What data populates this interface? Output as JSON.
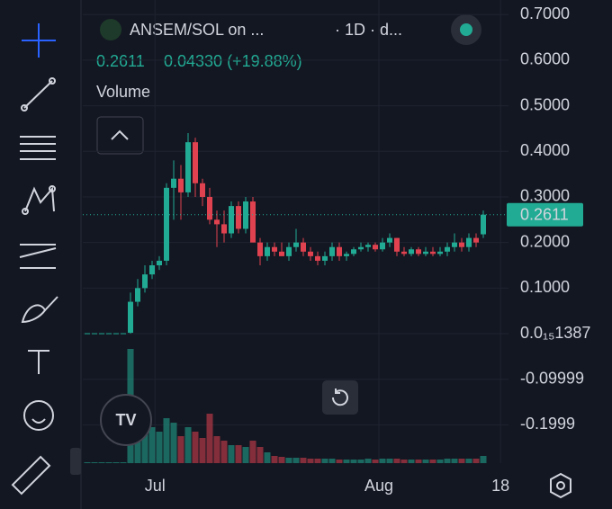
{
  "header": {
    "pair": "ANSEM/SOL on ...",
    "interval": "· 1D · d...",
    "change": "0.04330 (+19.88%)",
    "volume_label": "Volume"
  },
  "chart_data": {
    "type": "candlestick",
    "up_color": "#22ab94",
    "down_color": "#e0424f",
    "open": [
      0.001,
      0.001,
      0.001,
      0.001,
      0.001,
      0.001,
      0.002,
      0.07,
      0.1,
      0.13,
      0.15,
      0.16,
      0.32,
      0.34,
      0.31,
      0.42,
      0.33,
      0.3,
      0.25,
      0.24,
      0.22,
      0.28,
      0.23,
      0.29,
      0.2,
      0.17,
      0.19,
      0.18,
      0.17,
      0.19,
      0.2,
      0.18,
      0.17,
      0.16,
      0.17,
      0.19,
      0.17,
      0.175,
      0.185,
      0.19,
      0.195,
      0.185,
      0.2,
      0.21,
      0.18,
      0.175,
      0.185,
      0.175,
      0.18,
      0.175,
      0.18,
      0.19,
      0.2,
      0.19,
      0.21,
      0.218
    ],
    "high": [
      0.001,
      0.001,
      0.001,
      0.001,
      0.001,
      0.001,
      0.09,
      0.12,
      0.15,
      0.16,
      0.17,
      0.33,
      0.38,
      0.37,
      0.44,
      0.43,
      0.34,
      0.32,
      0.27,
      0.27,
      0.29,
      0.29,
      0.3,
      0.3,
      0.21,
      0.2,
      0.2,
      0.2,
      0.2,
      0.23,
      0.21,
      0.19,
      0.18,
      0.18,
      0.2,
      0.2,
      0.18,
      0.19,
      0.2,
      0.2,
      0.2,
      0.21,
      0.22,
      0.21,
      0.19,
      0.19,
      0.19,
      0.19,
      0.19,
      0.19,
      0.2,
      0.22,
      0.21,
      0.22,
      0.22,
      0.27
    ],
    "low": [
      0.001,
      0.001,
      0.001,
      0.001,
      0.001,
      0.001,
      0.0,
      0.06,
      0.09,
      0.12,
      0.14,
      0.15,
      0.25,
      0.25,
      0.3,
      0.3,
      0.28,
      0.24,
      0.19,
      0.2,
      0.21,
      0.22,
      0.22,
      0.2,
      0.15,
      0.16,
      0.17,
      0.17,
      0.16,
      0.18,
      0.17,
      0.16,
      0.15,
      0.15,
      0.16,
      0.16,
      0.16,
      0.17,
      0.18,
      0.18,
      0.18,
      0.18,
      0.19,
      0.17,
      0.17,
      0.17,
      0.17,
      0.17,
      0.17,
      0.17,
      0.17,
      0.18,
      0.18,
      0.18,
      0.19,
      0.21
    ],
    "close": [
      0.001,
      0.001,
      0.001,
      0.001,
      0.001,
      0.001,
      0.07,
      0.1,
      0.13,
      0.15,
      0.16,
      0.32,
      0.34,
      0.31,
      0.42,
      0.33,
      0.3,
      0.25,
      0.24,
      0.22,
      0.28,
      0.23,
      0.29,
      0.2,
      0.17,
      0.19,
      0.18,
      0.17,
      0.19,
      0.2,
      0.18,
      0.17,
      0.16,
      0.17,
      0.19,
      0.17,
      0.175,
      0.185,
      0.19,
      0.195,
      0.185,
      0.2,
      0.21,
      0.18,
      0.175,
      0.185,
      0.175,
      0.18,
      0.175,
      0.18,
      0.19,
      0.2,
      0.19,
      0.21,
      0.2,
      0.2611
    ],
    "volume": [
      1,
      1,
      1,
      1,
      1,
      1,
      127,
      60,
      45,
      40,
      35,
      50,
      45,
      30,
      40,
      35,
      28,
      55,
      30,
      25,
      20,
      20,
      18,
      25,
      18,
      12,
      8,
      7,
      6,
      6,
      6,
      5,
      5,
      5,
      5,
      4,
      4,
      4,
      4,
      5,
      4,
      5,
      5,
      5,
      4,
      4,
      4,
      4,
      4,
      4,
      5,
      5,
      5,
      5,
      5,
      8
    ],
    "xlim": [
      -0.625,
      58.5
    ],
    "xticks": [
      {
        "value": 9.4,
        "label": "Jul"
      },
      {
        "value": 40.5,
        "label": "Aug"
      },
      {
        "value": 57.4,
        "label": "18"
      }
    ],
    "ylim": [
      -0.284,
      0.732
    ],
    "yticks": [
      {
        "value": 0.7,
        "label": "0.7000"
      },
      {
        "value": 0.6,
        "label": "0.6000"
      },
      {
        "value": 0.5,
        "label": "0.5000"
      },
      {
        "value": 0.4,
        "label": "0.4000"
      },
      {
        "value": 0.3,
        "label": "0.3000"
      },
      {
        "value": 0.2,
        "label": "0.2000"
      },
      {
        "value": 0.1,
        "label": "0.1000"
      },
      {
        "value": 1.387e-16,
        "label": "0.0₁₅1387"
      },
      -0.09999,
      -0.1999
    ]
  }
}
